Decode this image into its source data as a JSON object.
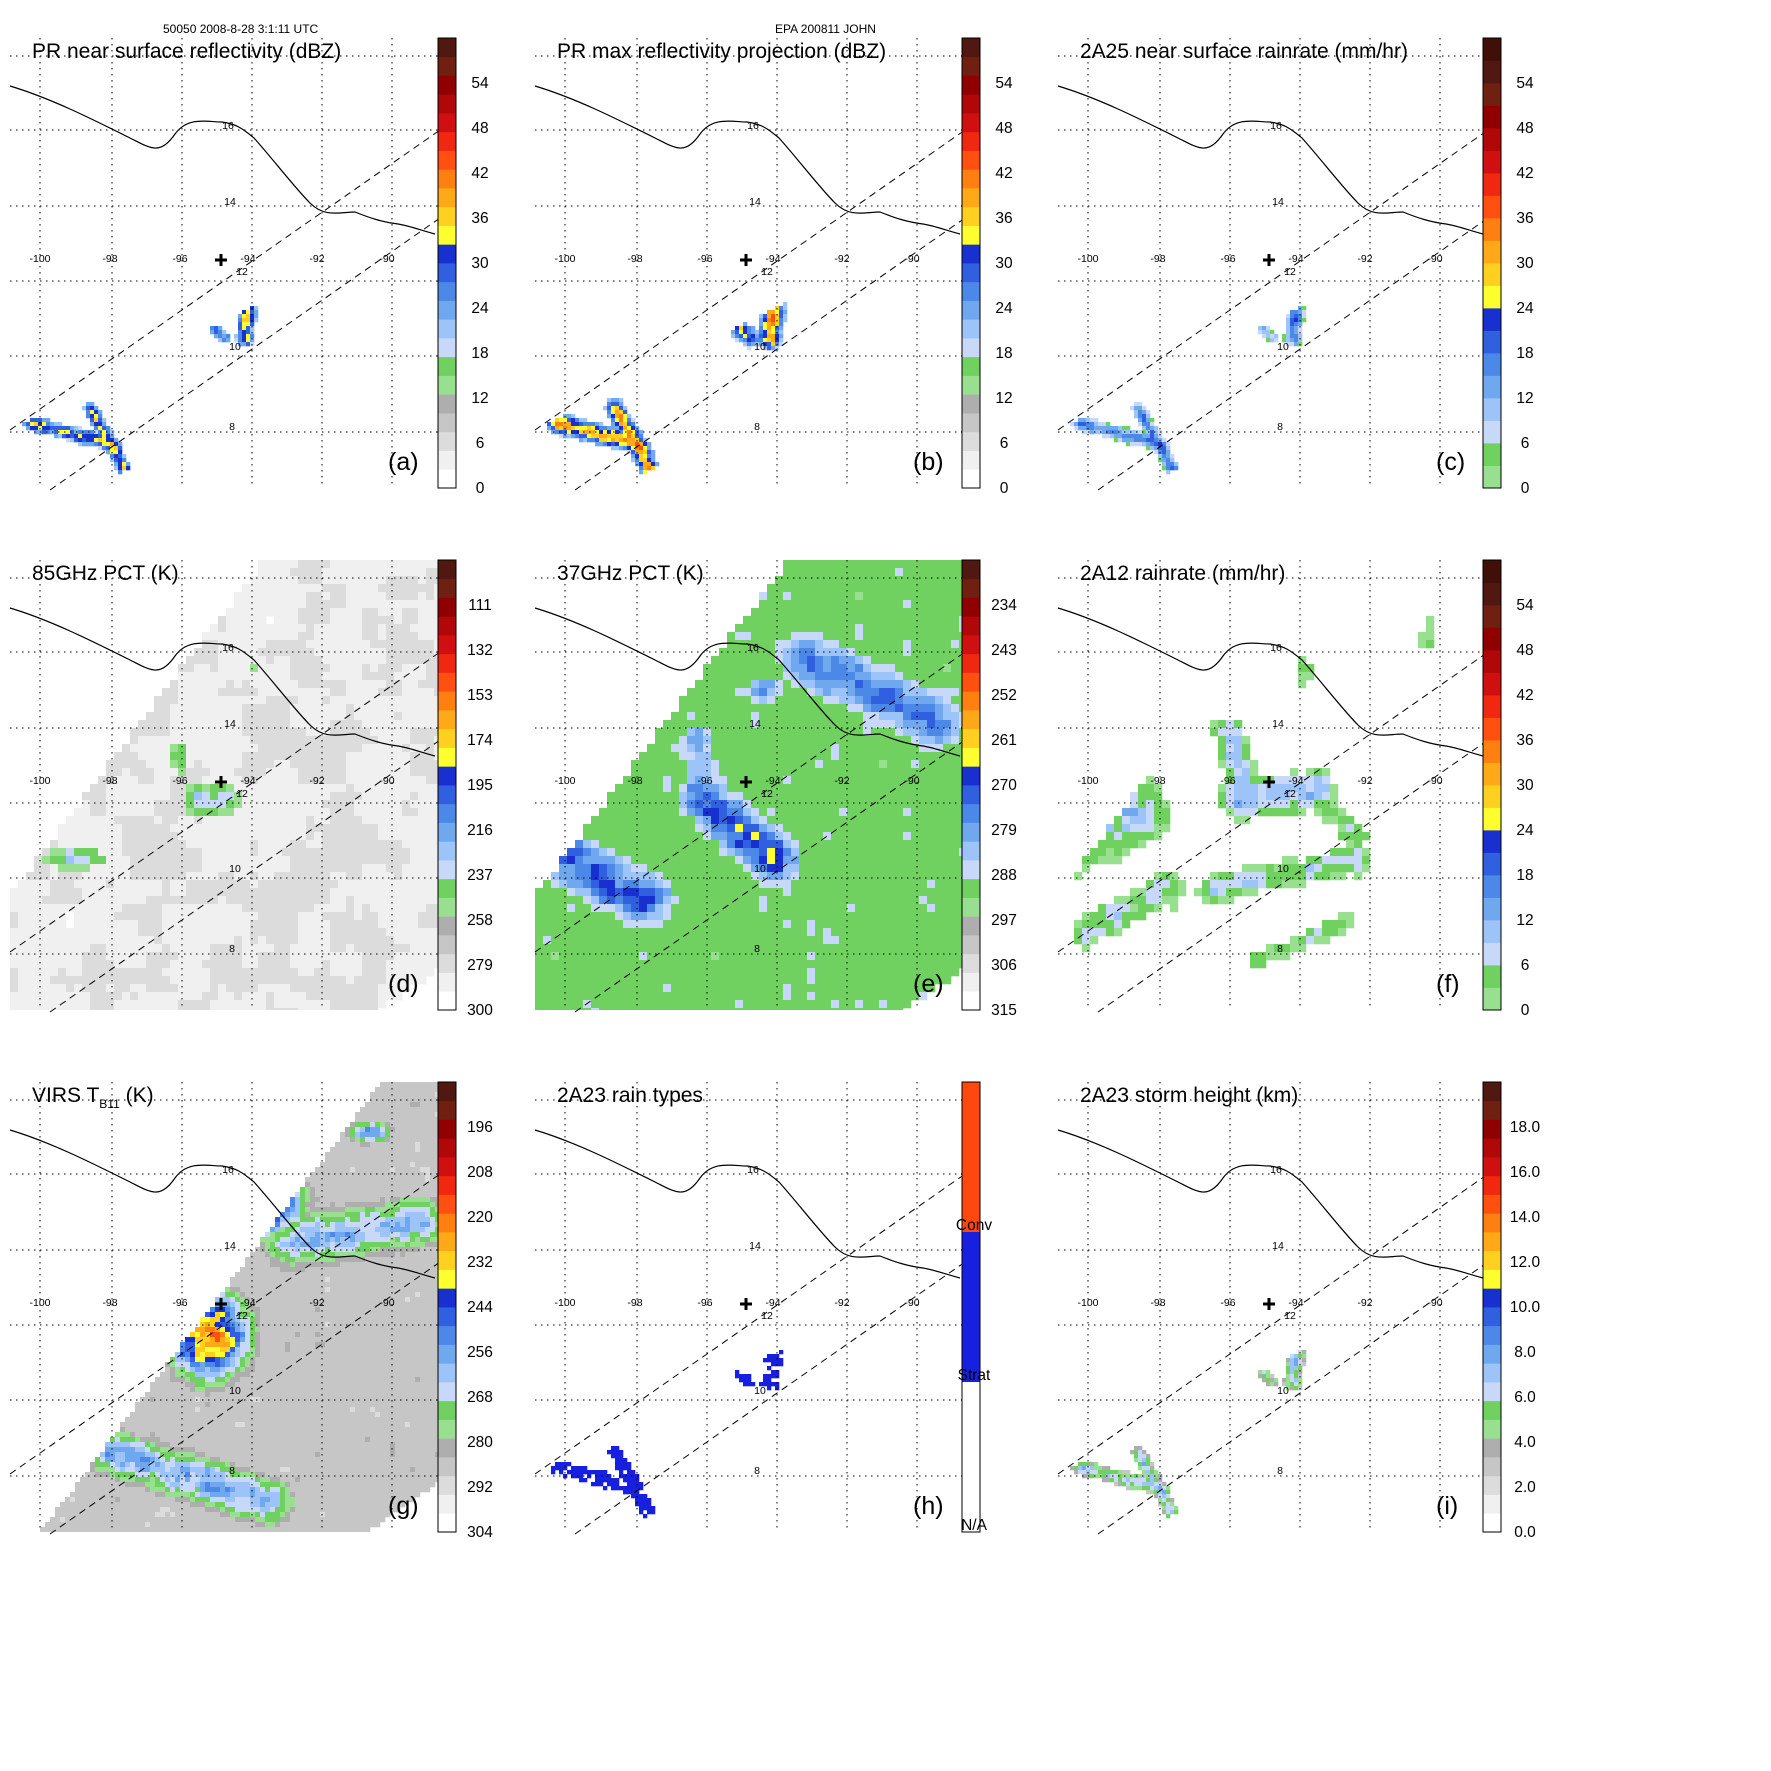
{
  "header": {
    "left": "50050 2008-8-28 3:1:11 UTC",
    "center": "EPA 200811 JOHN"
  },
  "map_labels": {
    "lon": [
      "-100",
      "-98",
      "-96",
      "-94",
      "-92",
      "-90"
    ],
    "lat": [
      "8",
      "10",
      "12",
      "14",
      "16"
    ]
  },
  "chart_data": [
    {
      "id": "a",
      "type": "heatmap",
      "panel_label": "(a)",
      "title": "PR near surface reflectivity (dBZ)",
      "field": "pr-swath",
      "colorbar": {
        "ticks": [
          "0",
          "6",
          "12",
          "18",
          "24",
          "30",
          "36",
          "42",
          "48",
          "54"
        ],
        "colors": [
          "#ffffff",
          "#f0f0f0",
          "#dcdcdc",
          "#c6c6c6",
          "#aeaeae",
          "#98e090",
          "#70d060",
          "#c8d8f8",
          "#9cc4f8",
          "#70a8f0",
          "#4c88e8",
          "#3060e0",
          "#1830d0",
          "#ffff30",
          "#ffd020",
          "#ffa818",
          "#ff8010",
          "#ff5010",
          "#f02810",
          "#d01010",
          "#b00808",
          "#900000",
          "#702010",
          "#501810"
        ]
      }
    },
    {
      "id": "b",
      "type": "heatmap",
      "panel_label": "(b)",
      "title": "PR max reflectivity projection (dBZ)",
      "field": "pr-swath-max",
      "colorbar": {
        "ticks": [
          "0",
          "6",
          "12",
          "18",
          "24",
          "30",
          "36",
          "42",
          "48",
          "54"
        ],
        "colors": [
          "#ffffff",
          "#f0f0f0",
          "#dcdcdc",
          "#c6c6c6",
          "#aeaeae",
          "#98e090",
          "#70d060",
          "#c8d8f8",
          "#9cc4f8",
          "#70a8f0",
          "#4c88e8",
          "#3060e0",
          "#1830d0",
          "#ffff30",
          "#ffd020",
          "#ffa818",
          "#ff8010",
          "#ff5010",
          "#f02810",
          "#d01010",
          "#b00808",
          "#900000",
          "#702010",
          "#501810"
        ]
      }
    },
    {
      "id": "c",
      "type": "heatmap",
      "panel_label": "(c)",
      "title": "2A25 near surface rainrate (mm/hr)",
      "field": "pr-rain",
      "colorbar": {
        "ticks": [
          "0",
          "6",
          "12",
          "18",
          "24",
          "30",
          "36",
          "42",
          "48",
          "54"
        ],
        "colors": [
          "#98e090",
          "#70d060",
          "#c8d8f8",
          "#9cc4f8",
          "#70a8f0",
          "#4c88e8",
          "#3060e0",
          "#1830d0",
          "#ffff30",
          "#ffd020",
          "#ffa818",
          "#ff8010",
          "#ff5010",
          "#f02810",
          "#d01010",
          "#b00808",
          "#900000",
          "#702010",
          "#501810",
          "#401008"
        ]
      }
    },
    {
      "id": "d",
      "type": "heatmap",
      "panel_label": "(d)",
      "title": "85GHz PCT (K)",
      "field": "tmi-85",
      "colorbar": {
        "ticks": [
          "300",
          "279",
          "258",
          "237",
          "216",
          "195",
          "174",
          "153",
          "132",
          "111"
        ],
        "colors": [
          "#ffffff",
          "#f0f0f0",
          "#dcdcdc",
          "#c6c6c6",
          "#aeaeae",
          "#98e090",
          "#70d060",
          "#c8d8f8",
          "#9cc4f8",
          "#70a8f0",
          "#4c88e8",
          "#3060e0",
          "#1830d0",
          "#ffff30",
          "#ffd020",
          "#ffa818",
          "#ff8010",
          "#ff5010",
          "#f02810",
          "#d01010",
          "#b00808",
          "#900000",
          "#702010",
          "#501810"
        ]
      }
    },
    {
      "id": "e",
      "type": "heatmap",
      "panel_label": "(e)",
      "title": "37GHz PCT (K)",
      "field": "tmi-37",
      "colorbar": {
        "ticks": [
          "315",
          "306",
          "297",
          "288",
          "279",
          "270",
          "261",
          "252",
          "243",
          "234"
        ],
        "colors": [
          "#ffffff",
          "#f0f0f0",
          "#dcdcdc",
          "#c6c6c6",
          "#aeaeae",
          "#98e090",
          "#70d060",
          "#c8d8f8",
          "#9cc4f8",
          "#70a8f0",
          "#4c88e8",
          "#3060e0",
          "#1830d0",
          "#ffff30",
          "#ffd020",
          "#ffa818",
          "#ff8010",
          "#ff5010",
          "#f02810",
          "#d01010",
          "#b00808",
          "#900000",
          "#702010",
          "#501810"
        ]
      }
    },
    {
      "id": "f",
      "type": "heatmap",
      "panel_label": "(f)",
      "title": "2A12 rainrate (mm/hr)",
      "field": "tmi-rain",
      "colorbar": {
        "ticks": [
          "0",
          "6",
          "12",
          "18",
          "24",
          "30",
          "36",
          "42",
          "48",
          "54"
        ],
        "colors": [
          "#98e090",
          "#70d060",
          "#c8d8f8",
          "#9cc4f8",
          "#70a8f0",
          "#4c88e8",
          "#3060e0",
          "#1830d0",
          "#ffff30",
          "#ffd020",
          "#ffa818",
          "#ff8010",
          "#ff5010",
          "#f02810",
          "#d01010",
          "#b00808",
          "#900000",
          "#702010",
          "#501810",
          "#401008"
        ]
      }
    },
    {
      "id": "g",
      "type": "heatmap",
      "panel_label": "(g)",
      "title": "VIRS T",
      "title_sub": "B11",
      "title_suffix": " (K)",
      "field": "virs",
      "colorbar": {
        "ticks": [
          "304",
          "292",
          "280",
          "268",
          "256",
          "244",
          "232",
          "220",
          "208",
          "196"
        ],
        "colors": [
          "#ffffff",
          "#f0f0f0",
          "#dcdcdc",
          "#c6c6c6",
          "#aeaeae",
          "#98e090",
          "#70d060",
          "#c8d8f8",
          "#9cc4f8",
          "#70a8f0",
          "#4c88e8",
          "#3060e0",
          "#1830d0",
          "#ffff30",
          "#ffd020",
          "#ffa818",
          "#ff8010",
          "#ff5010",
          "#f02810",
          "#d01010",
          "#b00808",
          "#900000",
          "#702010",
          "#501810"
        ]
      }
    },
    {
      "id": "h",
      "type": "heatmap",
      "panel_label": "(h)",
      "title": "2A23 rain types",
      "field": "pr-type",
      "categorical": true,
      "colorbar": {
        "ticks": [
          "N/A",
          "Strat",
          "Conv"
        ],
        "colors": [
          "#ffffff",
          "#1820e0",
          "#ff4810"
        ]
      }
    },
    {
      "id": "i",
      "type": "heatmap",
      "panel_label": "(i)",
      "title": "2A23 storm height (km)",
      "field": "pr-height",
      "colorbar": {
        "ticks": [
          "0.0",
          "2.0",
          "4.0",
          "6.0",
          "8.0",
          "10.0",
          "12.0",
          "14.0",
          "16.0",
          "18.0"
        ],
        "colors": [
          "#ffffff",
          "#f0f0f0",
          "#dcdcdc",
          "#c6c6c6",
          "#aeaeae",
          "#98e090",
          "#70d060",
          "#c8d8f8",
          "#9cc4f8",
          "#70a8f0",
          "#4c88e8",
          "#3060e0",
          "#1830d0",
          "#ffff30",
          "#ffd020",
          "#ffa818",
          "#ff8010",
          "#ff5010",
          "#f02810",
          "#d01010",
          "#b00808",
          "#900000",
          "#702010",
          "#501810"
        ]
      }
    }
  ]
}
